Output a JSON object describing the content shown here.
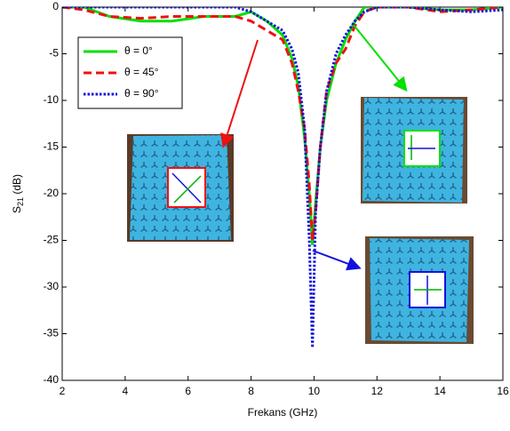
{
  "chart_data": {
    "type": "line",
    "xlabel": "Frekans (GHz)",
    "ylabel_parts": [
      "S",
      "21",
      " (dB)"
    ],
    "x": [
      2,
      2.7,
      3.5,
      4.5,
      5.5,
      6.5,
      7.5,
      8,
      8.5,
      9,
      9.3,
      9.5,
      9.7,
      9.85,
      9.95,
      10.05,
      10.2,
      10.4,
      10.7,
      11,
      11.3,
      11.6,
      12,
      13,
      14,
      15,
      16
    ],
    "series": [
      {
        "name": "θ = 0°",
        "color": "#00e000",
        "style": "solid",
        "values": [
          0,
          0,
          -1,
          -1.5,
          -1.5,
          -1,
          -1,
          -0.5,
          -1.5,
          -3,
          -5.5,
          -8.5,
          -14,
          -20,
          -25.5,
          -21,
          -15,
          -10,
          -6,
          -3.5,
          -1.5,
          0,
          0,
          0,
          -0.3,
          -0.3,
          0
        ]
      },
      {
        "name": "θ = 45°",
        "color": "#ee1111",
        "style": "dashed",
        "values": [
          0,
          -0.3,
          -1,
          -1.2,
          -1,
          -1,
          -1,
          -1.5,
          -2.5,
          -3.5,
          -6,
          -9,
          -13,
          -19,
          -25,
          -22,
          -15,
          -9,
          -6,
          -4.5,
          -2,
          -0.5,
          0,
          0,
          -0.5,
          -0.3,
          0
        ]
      },
      {
        "name": "θ = 90°",
        "color": "#1111dd",
        "style": "dotted",
        "values": [
          0,
          0,
          0,
          0,
          0,
          0,
          0,
          -0.5,
          -1.5,
          -2.5,
          -4.5,
          -7,
          -13,
          -25,
          -36.5,
          -22,
          -15,
          -9,
          -5,
          -3,
          -1.5,
          -0.5,
          0,
          0,
          -0.3,
          -0.5,
          -0.3
        ]
      }
    ],
    "xlim": [
      2,
      16
    ],
    "xticks": [
      2,
      4,
      6,
      8,
      10,
      12,
      14,
      16
    ],
    "ylim": [
      -40,
      0
    ],
    "yticks": [
      -40,
      -35,
      -30,
      -25,
      -20,
      -15,
      -10,
      -5,
      0
    ],
    "grid": false,
    "legend": "upper left"
  }
}
